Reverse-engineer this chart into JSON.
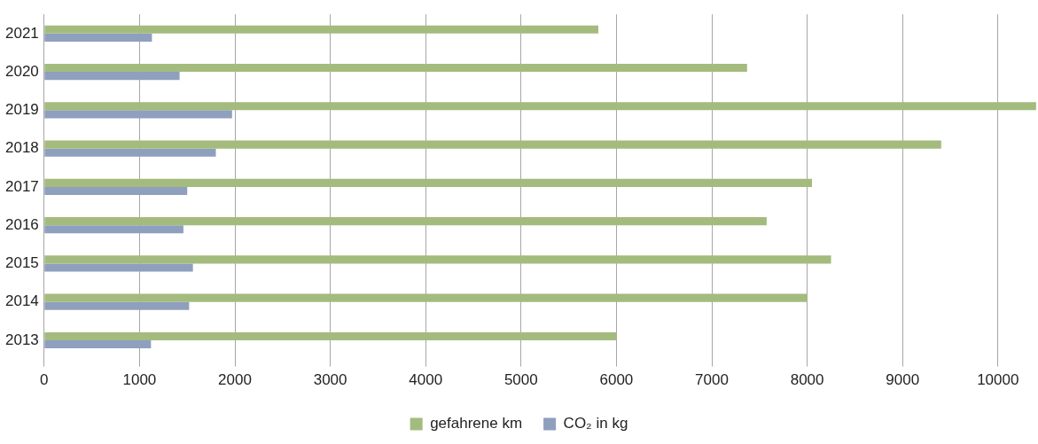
{
  "chart_data": {
    "type": "bar",
    "orientation": "horizontal",
    "categories": [
      "2021",
      "2020",
      "2019",
      "2018",
      "2017",
      "2016",
      "2015",
      "2014",
      "2013"
    ],
    "series": [
      {
        "name": "gefahrene km",
        "color": "#a4bb7e",
        "values": [
          5810,
          7370,
          10400,
          9405,
          8050,
          7575,
          8250,
          8000,
          6000
        ]
      },
      {
        "name": "CO₂ in kg",
        "color": "#8f9fbe",
        "values": [
          1130,
          1420,
          1970,
          1800,
          1500,
          1460,
          1560,
          1520,
          1120
        ]
      }
    ],
    "xlim": [
      0,
      10420
    ],
    "xticks": [
      0,
      1000,
      2000,
      3000,
      4000,
      5000,
      6000,
      7000,
      8000,
      9000,
      10000
    ],
    "grid": "x",
    "legend": "bottom"
  }
}
